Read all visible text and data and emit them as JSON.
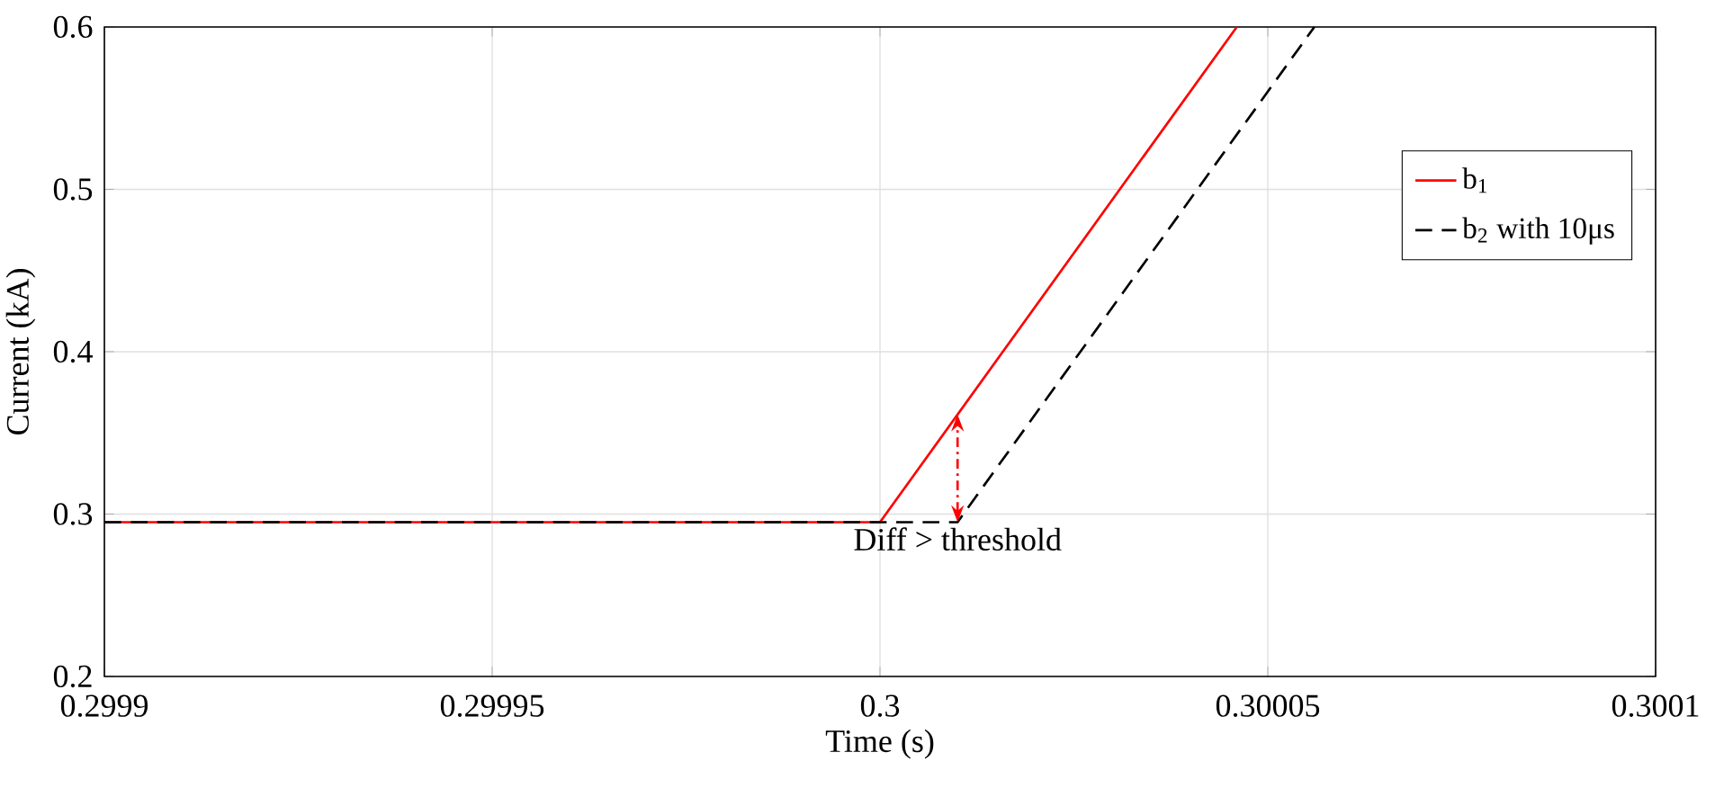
{
  "chart_data": {
    "type": "line",
    "xlabel": "Time (s)",
    "ylabel": "Current (kA)",
    "xlim": [
      0.2999,
      0.3001
    ],
    "ylim": [
      0.2,
      0.6
    ],
    "xticks": [
      0.2999,
      0.29995,
      0.3,
      0.30005,
      0.3001
    ],
    "yticks": [
      0.2,
      0.3,
      0.4,
      0.5,
      0.6
    ],
    "grid": true,
    "legend": "right",
    "series": [
      {
        "name": "b$_{1}$",
        "color": "#ff0000",
        "line_style": "solid",
        "x": [
          0.2999,
          0.3,
          0.300046
        ],
        "values": [
          0.295,
          0.295,
          0.6
        ]
      },
      {
        "name": "b$_{2}$ with 10μs",
        "color": "#000000",
        "line_style": "dashed",
        "x": [
          0.2999,
          0.30001,
          0.300056
        ],
        "values": [
          0.295,
          0.295,
          0.6
        ]
      }
    ],
    "annotations": [
      {
        "text": "Diff > threshold",
        "x": 0.30001,
        "y": 0.295
      }
    ]
  }
}
